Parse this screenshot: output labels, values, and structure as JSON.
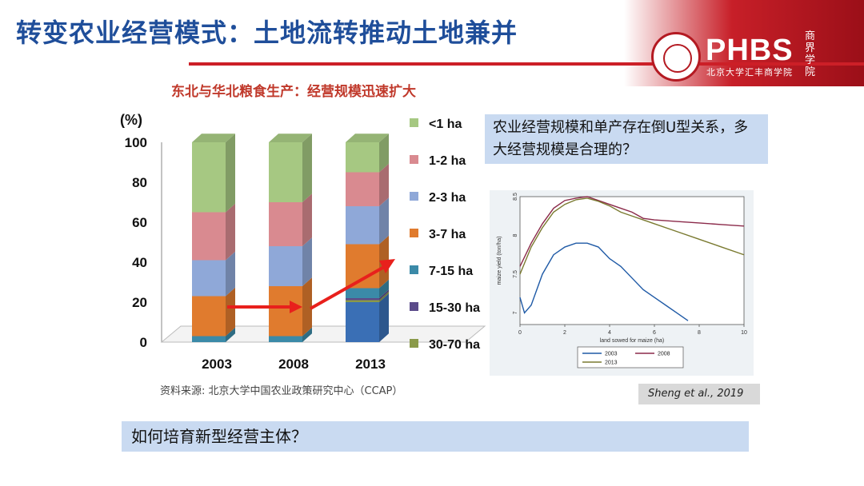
{
  "slide": {
    "title": "转变农业经营模式：土地流转推动土地兼并",
    "subtitle": "东北与华北粮食生产：经营规模迅速扩大",
    "source_note": "资料来源: 北京大学中国农业政策研究中心（CCAP）",
    "question": "农业经营规模和单产存在倒U型关系，多大经营规模是合理的？",
    "citation": "Sheng et al., 2019",
    "bottom_question": "如何培育新型经营主体？"
  },
  "logo": {
    "brand": "PHBS",
    "school": "北京大学汇丰商学院",
    "seal_text": "商界学院"
  },
  "colors": {
    "title": "#1f4e9a",
    "accent_red": "#cc1f27",
    "box_fill": "#c9daf1"
  },
  "chart_data": [
    {
      "type": "bar",
      "stacked": true,
      "title": "东北与华北粮食生产：经营规模迅速扩大",
      "ylabel": "(%)",
      "ylim": [
        0,
        100
      ],
      "yticks": [
        0,
        20,
        40,
        60,
        80,
        100
      ],
      "categories": [
        "2003",
        "2008",
        "2013"
      ],
      "series": [
        {
          "name": "30-70 ha",
          "color": "#8a9a4a",
          "values": [
            0,
            0,
            1
          ]
        },
        {
          "name": "15-30 ha",
          "color": "#5b4b8a",
          "values": [
            0,
            0,
            1
          ]
        },
        {
          "name": "7-15 ha",
          "color": "#3b8aa8",
          "values": [
            3,
            3,
            5
          ]
        },
        {
          "name": "3-7 ha",
          "color": "#e07b2e",
          "values": [
            20,
            25,
            22
          ]
        },
        {
          "name": "2-3 ha",
          "color": "#8fa8d8",
          "values": [
            18,
            20,
            19
          ]
        },
        {
          "name": "1-2 ha",
          "color": "#d98a90",
          "values": [
            24,
            22,
            17
          ]
        },
        {
          "name": "<1 ha",
          "color": "#a6c882",
          "values": [
            35,
            30,
            15
          ]
        }
      ],
      "extra_segment": {
        "category": "2013",
        "name": "base",
        "color": "#3a6fb5",
        "value": 20
      },
      "legend_order": [
        "<1 ha",
        "1-2 ha",
        "2-3 ha",
        "3-7 ha",
        "7-15 ha",
        "15-30 ha",
        "30-70 ha"
      ]
    },
    {
      "type": "line",
      "xlabel": "land sowed for maize (ha)",
      "ylabel": "maize yield (ton/ha)",
      "xlim": [
        0,
        10
      ],
      "ylim": [
        6.85,
        8.5
      ],
      "xticks": [
        0,
        2,
        4,
        6,
        8,
        10
      ],
      "yticks": [
        7,
        7.5,
        8,
        8.5
      ],
      "series": [
        {
          "name": "2003",
          "color": "#1f5aa6",
          "x": [
            0,
            0.2,
            0.5,
            1,
            1.5,
            2,
            2.5,
            3,
            3.5,
            4,
            4.5,
            5,
            5.5,
            6,
            6.5,
            7,
            7.5
          ],
          "y": [
            7.2,
            7.0,
            7.1,
            7.5,
            7.75,
            7.85,
            7.9,
            7.9,
            7.85,
            7.7,
            7.6,
            7.45,
            7.3,
            7.2,
            7.1,
            7.0,
            6.9
          ]
        },
        {
          "name": "2008",
          "color": "#8b2a4a",
          "x": [
            0,
            0.5,
            1,
            1.5,
            2,
            2.5,
            3,
            3.5,
            4,
            4.5,
            5,
            5.5,
            6,
            7,
            8,
            9,
            10
          ],
          "y": [
            7.6,
            7.9,
            8.15,
            8.35,
            8.45,
            8.48,
            8.5,
            8.45,
            8.4,
            8.35,
            8.3,
            8.22,
            8.2,
            8.18,
            8.16,
            8.14,
            8.12
          ]
        },
        {
          "name": "2013",
          "color": "#7a7a30",
          "x": [
            0,
            0.5,
            1,
            1.5,
            2,
            2.5,
            3,
            3.5,
            4,
            4.5,
            5,
            5.5,
            6,
            7,
            8,
            9,
            10
          ],
          "y": [
            7.5,
            7.85,
            8.1,
            8.3,
            8.4,
            8.46,
            8.48,
            8.44,
            8.38,
            8.3,
            8.25,
            8.2,
            8.15,
            8.05,
            7.95,
            7.85,
            7.75
          ]
        }
      ]
    }
  ]
}
